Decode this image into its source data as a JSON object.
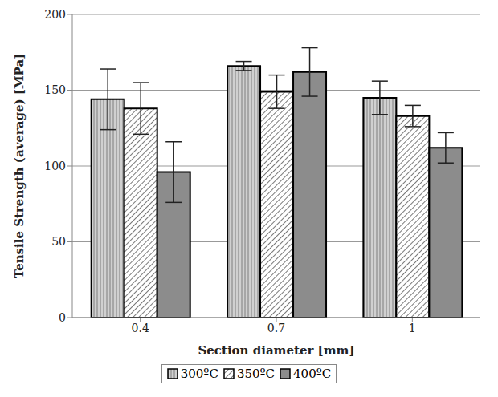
{
  "chart_data": {
    "type": "bar",
    "y_label": "Tensile Strength (average) [MPa]",
    "x_label": "Section diameter [mm]",
    "categories": [
      "0.4",
      "0.7",
      "1"
    ],
    "series": [
      {
        "name": "300ºC",
        "color": "#d0d0d0",
        "values": [
          144,
          166,
          145
        ],
        "errors": [
          20,
          3,
          11
        ]
      },
      {
        "name": "350ºC",
        "color": "#b4b4b4",
        "values": [
          138,
          149,
          133
        ],
        "errors": [
          17,
          11,
          7
        ]
      },
      {
        "name": "400ºC",
        "color": "#8c8c8c",
        "values": [
          96,
          162,
          112
        ],
        "errors": [
          20,
          16,
          10
        ]
      }
    ],
    "ylim": [
      0,
      200
    ],
    "yticks": [
      0,
      50,
      100,
      150,
      200
    ],
    "grid": true,
    "legend": "bottom"
  }
}
